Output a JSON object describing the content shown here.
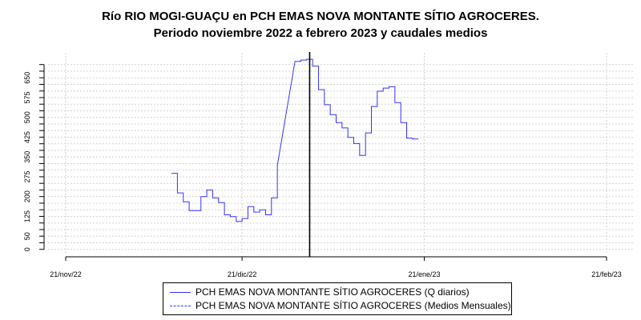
{
  "chart_data": {
    "type": "line",
    "title": "Río RIO MOGI-GUAÇU en PCH EMAS NOVA MONTANTE SÍTIO AGROCERES.",
    "subtitle": "Periodo noviembre 2022 a febrero 2023 y caudales medios",
    "xlabel": "",
    "ylabel": "",
    "ylim": [
      0,
      700
    ],
    "y_ticks": [
      0,
      50,
      125,
      200,
      275,
      350,
      425,
      500,
      575,
      650
    ],
    "y_minor_step": 25,
    "x_ticks": [
      {
        "label": "21/nov/22",
        "day": 0
      },
      {
        "label": "21/dic/22",
        "day": 30
      },
      {
        "label": "21/ene/23",
        "day": 61
      },
      {
        "label": "21/feb/23",
        "day": 92
      }
    ],
    "xlim_days": [
      0,
      92
    ],
    "x_start_date": "2022-11-21",
    "vertical_marker_day": 41.5,
    "grid": true,
    "legend_position": "bottom",
    "series": [
      {
        "name": "PCH EMAS NOVA MONTANTE SÍTIO AGROCERES (Q diarios)",
        "color": "#3333ff",
        "style": "solid",
        "start_day": 18,
        "values": [
          288,
          214,
          180,
          147,
          147,
          200,
          225,
          195,
          177,
          131,
          124,
          106,
          117,
          162,
          141,
          150,
          131,
          195,
          318,
          null,
          null,
          712,
          717,
          720,
          694,
          605,
          548,
          510,
          480,
          460,
          424,
          401,
          356,
          441,
          541,
          599,
          611,
          616,
          556,
          480,
          421,
          418,
          418
        ]
      },
      {
        "name": "PCH EMAS NOVA MONTANTE SÍTIO AGROCERES (Medios Mensuales)",
        "color": "#3333ff",
        "style": "dashed",
        "values": []
      }
    ]
  }
}
